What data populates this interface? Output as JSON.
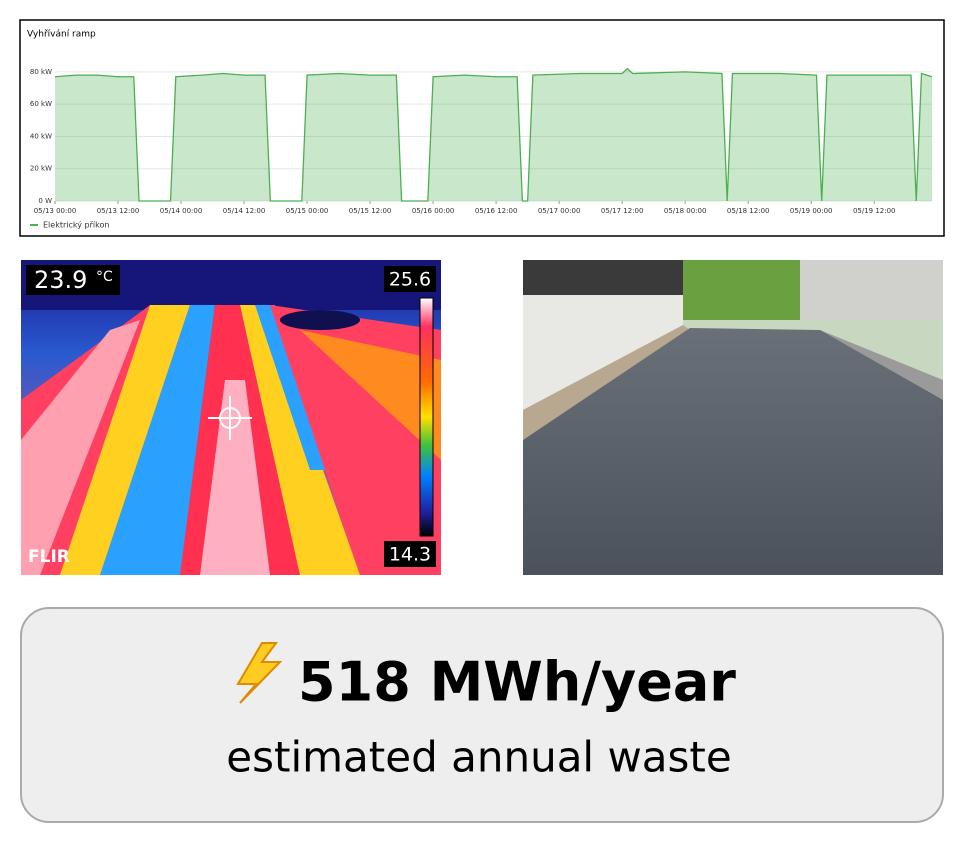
{
  "chart_data": {
    "type": "area",
    "title": "Vyhřívání ramp",
    "x": [
      "05/13 00:00",
      "05/13 04:00",
      "05/13 08:00",
      "05/13 12:00",
      "05/13 15:00",
      "05/13 16:00",
      "05/13 22:00",
      "05/13 23:00",
      "05/14 04:00",
      "05/14 08:00",
      "05/14 12:00",
      "05/14 16:00",
      "05/14 17:00",
      "05/14 23:00",
      "05/15 00:00",
      "05/15 06:00",
      "05/15 12:00",
      "05/15 17:00",
      "05/15 18:00",
      "05/15 23:00",
      "05/16 00:00",
      "05/16 06:00",
      "05/16 12:00",
      "05/16 16:00",
      "05/16 17:00",
      "05/16 18:00",
      "05/16 19:00",
      "05/17 04:00",
      "05/17 12:00",
      "05/17 13:00",
      "05/17 14:00",
      "05/18 00:00",
      "05/18 07:00",
      "05/18 08:00",
      "05/18 09:00",
      "05/18 18:00",
      "05/19 01:00",
      "05/19 02:00",
      "05/19 03:00",
      "05/19 12:00",
      "05/19 19:00",
      "05/19 20:00",
      "05/19 21:00",
      "05/19 23:00"
    ],
    "series": [
      {
        "name": "Elektrický příkon",
        "color": "#4caf50",
        "values": [
          77,
          78,
          78,
          77,
          77,
          0,
          0,
          77,
          78,
          79,
          78,
          78,
          0,
          0,
          78,
          79,
          78,
          78,
          0,
          0,
          77,
          78,
          77,
          77,
          0,
          0,
          78,
          79,
          79,
          82,
          79,
          80,
          79,
          0,
          79,
          79,
          78,
          0,
          78,
          78,
          78,
          0,
          79,
          77
        ]
      }
    ],
    "xlim": [
      "05/13 00:00",
      "05/19 23:00"
    ],
    "xticks": [
      "05/13 00:00",
      "05/13 12:00",
      "05/14 00:00",
      "05/14 12:00",
      "05/15 00:00",
      "05/15 12:00",
      "05/16 00:00",
      "05/16 12:00",
      "05/17 00:00",
      "05/17 12:00",
      "05/18 00:00",
      "05/18 12:00",
      "05/19 00:00",
      "05/19 12:00"
    ],
    "ylim": [
      0,
      88
    ],
    "yticks": [
      {
        "value": 0,
        "label": "0 W"
      },
      {
        "value": 20,
        "label": "20 kW"
      },
      {
        "value": 40,
        "label": "40 kW"
      },
      {
        "value": 60,
        "label": "60 kW"
      },
      {
        "value": 80,
        "label": "80 kW"
      }
    ],
    "grid": true,
    "legend": "bottom-left"
  },
  "thermal_image": {
    "temperature": "23.9",
    "unit": "°C",
    "scale_max": "25.6",
    "scale_min": "14.3",
    "brand": "FLIR"
  },
  "summary": {
    "headline": "518 MWh/year",
    "caption": "estimated annual waste"
  }
}
